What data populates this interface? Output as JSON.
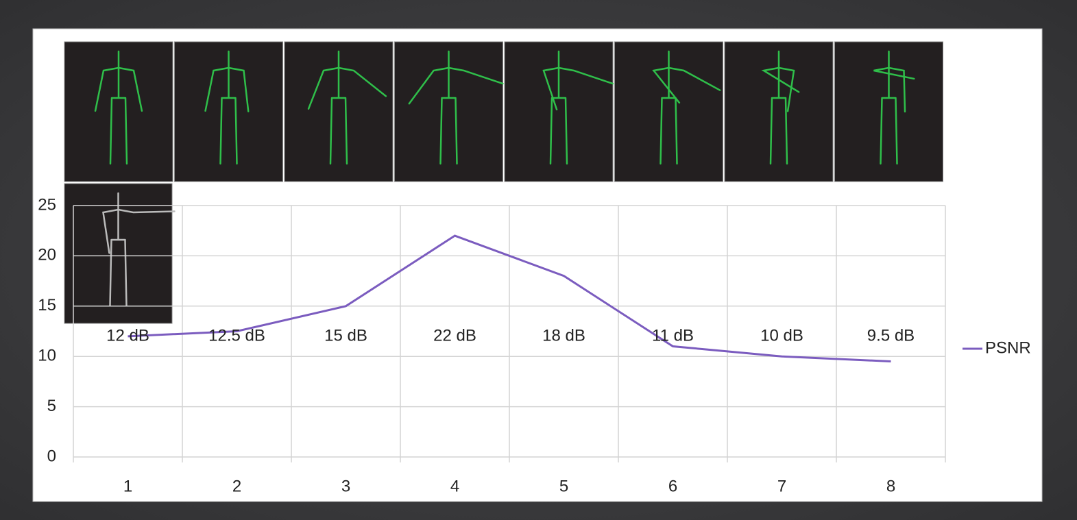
{
  "chart_data": {
    "type": "line",
    "categories": [
      "1",
      "2",
      "3",
      "4",
      "5",
      "6",
      "7",
      "8"
    ],
    "series": [
      {
        "name": "PSNR",
        "color": "#7b5cbf",
        "values": [
          12,
          12.5,
          15,
          22,
          18,
          11,
          10,
          9.5
        ],
        "value_labels": [
          "12 dB",
          "12.5 dB",
          "15 dB",
          "22 dB",
          "18 dB",
          "11 dB",
          "10 dB",
          "9.5 dB"
        ]
      }
    ],
    "ylim": [
      0,
      25
    ],
    "yticks": [
      0,
      5,
      10,
      15,
      20,
      25
    ],
    "grid": true,
    "legend": "right"
  }
}
